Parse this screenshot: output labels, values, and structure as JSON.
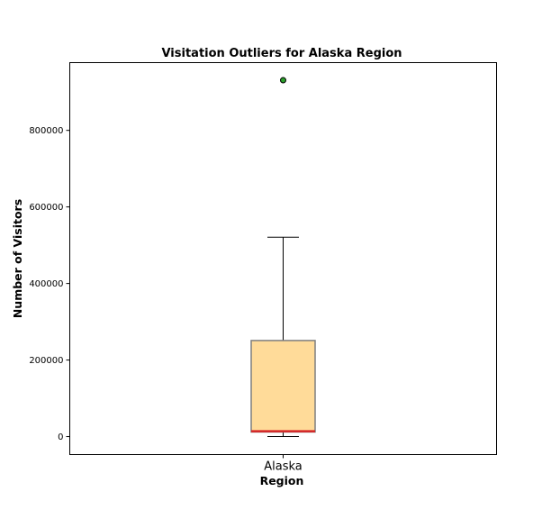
{
  "chart_data": {
    "type": "box",
    "title": "Visitation Outliers for Alaska Region",
    "xlabel": "Region",
    "ylabel": "Number of Visitors",
    "categories": [
      "Alaska"
    ],
    "ylim": [
      -47000,
      977000
    ],
    "yticks": [
      0,
      200000,
      400000,
      600000,
      800000
    ],
    "ytick_labels": [
      "0",
      "200000",
      "400000",
      "600000",
      "800000"
    ],
    "boxes": [
      {
        "category": "Alaska",
        "whisker_low": 0,
        "q1": 12000,
        "median": 14000,
        "q3": 251000,
        "whisker_high": 521000,
        "outliers": [
          931000
        ]
      }
    ],
    "grid": false,
    "colors": {
      "box_fill": "#FFDB99",
      "box_edge": "#7F7F7F",
      "median": "#D62728",
      "whisker": "#000000",
      "outlier_fill": "#2CA02C",
      "outlier_edge": "#000000"
    }
  }
}
